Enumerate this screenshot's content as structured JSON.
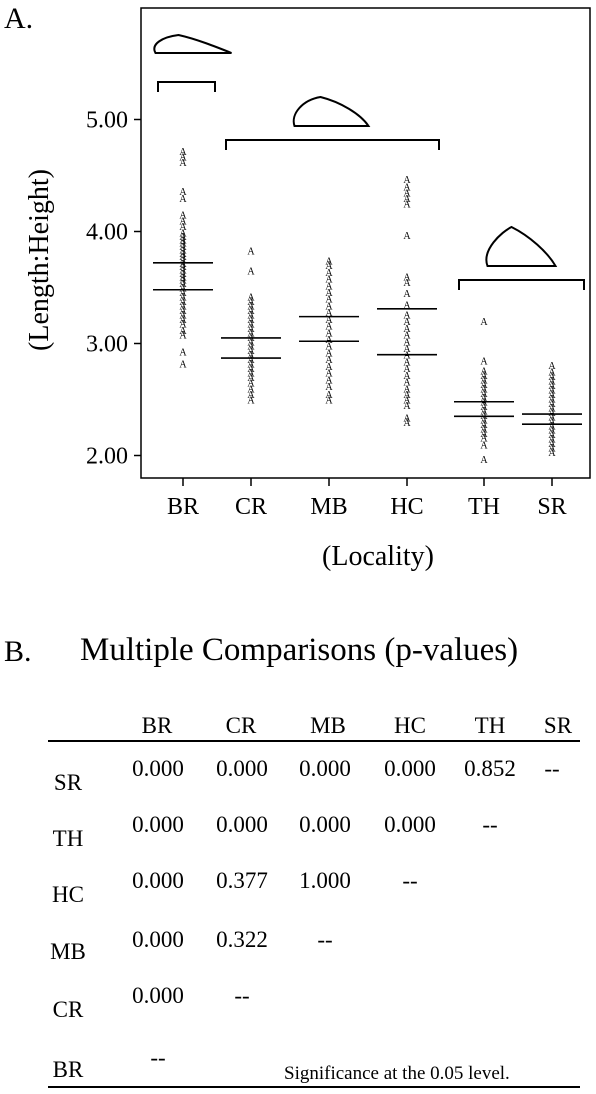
{
  "panel_a_label": "A.",
  "panel_b_label": "B.",
  "chart_data": {
    "type": "scatter",
    "title": "",
    "xlabel": "(Locality)",
    "ylabel": "(Length:Height)",
    "categories": [
      "BR",
      "CR",
      "MB",
      "HC",
      "TH",
      "SR"
    ],
    "ylim": [
      1.85,
      5.95
    ],
    "yticks": [
      "2.00",
      "3.00",
      "4.00",
      "5.00"
    ],
    "ytick_values": [
      2,
      3,
      4,
      5
    ],
    "marker": "A",
    "grid": false,
    "series": [
      {
        "category": "BR",
        "interval": [
          3.48,
          3.72
        ],
        "points": [
          2.82,
          2.93,
          3.08,
          3.12,
          3.18,
          3.22,
          3.26,
          3.3,
          3.34,
          3.38,
          3.42,
          3.46,
          3.5,
          3.54,
          3.57,
          3.6,
          3.63,
          3.66,
          3.69,
          3.72,
          3.75,
          3.78,
          3.81,
          3.84,
          3.87,
          3.9,
          3.93,
          3.96,
          3.99,
          4.05,
          4.1,
          4.15,
          4.3,
          4.36,
          4.62,
          4.67,
          4.72
        ]
      },
      {
        "category": "CR",
        "interval": [
          2.87,
          3.05
        ],
        "points": [
          2.5,
          2.55,
          2.6,
          2.65,
          2.7,
          2.74,
          2.78,
          2.82,
          2.86,
          2.9,
          2.94,
          2.98,
          3.02,
          3.06,
          3.1,
          3.14,
          3.18,
          3.22,
          3.26,
          3.3,
          3.34,
          3.38,
          3.42,
          3.65,
          3.83
        ]
      },
      {
        "category": "MB",
        "interval": [
          3.02,
          3.24
        ],
        "points": [
          2.5,
          2.55,
          2.62,
          2.68,
          2.74,
          2.8,
          2.86,
          2.92,
          2.98,
          3.04,
          3.1,
          3.16,
          3.22,
          3.28,
          3.34,
          3.4,
          3.46,
          3.52,
          3.58,
          3.64,
          3.7,
          3.74
        ]
      },
      {
        "category": "HC",
        "interval": [
          2.9,
          3.31
        ],
        "points": [
          2.3,
          2.34,
          2.45,
          2.5,
          2.55,
          2.6,
          2.66,
          2.72,
          2.78,
          2.84,
          2.9,
          2.96,
          3.02,
          3.08,
          3.14,
          3.2,
          3.26,
          3.35,
          3.45,
          3.55,
          3.6,
          3.97,
          4.25,
          4.3,
          4.35,
          4.4,
          4.47
        ]
      },
      {
        "category": "TH",
        "interval": [
          2.35,
          2.48
        ],
        "points": [
          1.97,
          2.1,
          2.16,
          2.2,
          2.24,
          2.28,
          2.32,
          2.36,
          2.4,
          2.44,
          2.48,
          2.52,
          2.56,
          2.6,
          2.64,
          2.68,
          2.72,
          2.76,
          2.85,
          3.2
        ]
      },
      {
        "category": "SR",
        "interval": [
          2.28,
          2.37
        ],
        "points": [
          2.03,
          2.07,
          2.11,
          2.15,
          2.19,
          2.23,
          2.27,
          2.31,
          2.35,
          2.39,
          2.43,
          2.47,
          2.51,
          2.55,
          2.59,
          2.63,
          2.67,
          2.71,
          2.75,
          2.81
        ]
      }
    ],
    "groups": [
      {
        "members": [
          "BR"
        ],
        "shape": "flat-wedge"
      },
      {
        "members": [
          "CR",
          "MB",
          "HC"
        ],
        "shape": "mid-wedge"
      },
      {
        "members": [
          "TH",
          "SR"
        ],
        "shape": "tall-wedge"
      }
    ]
  },
  "comparisons": {
    "title": "Multiple Comparisons (p-values)",
    "columns": [
      "BR",
      "CR",
      "MB",
      "HC",
      "TH",
      "SR"
    ],
    "rows": [
      {
        "label": "SR",
        "values": [
          "0.000",
          "0.000",
          "0.000",
          "0.000",
          "0.852",
          "--"
        ]
      },
      {
        "label": "TH",
        "values": [
          "0.000",
          "0.000",
          "0.000",
          "0.000",
          "--"
        ]
      },
      {
        "label": "HC",
        "values": [
          "0.000",
          "0.377",
          "1.000",
          "--"
        ]
      },
      {
        "label": "MB",
        "values": [
          "0.000",
          "0.322",
          "--"
        ]
      },
      {
        "label": "CR",
        "values": [
          "0.000",
          "--"
        ]
      },
      {
        "label": "BR",
        "values": [
          "--"
        ]
      }
    ],
    "note": "Significance at the 0.05 level."
  }
}
